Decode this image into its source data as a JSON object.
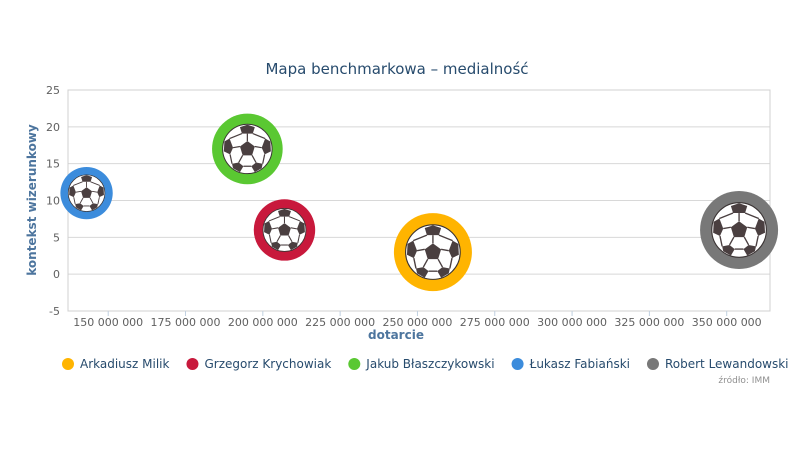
{
  "chart_data": {
    "type": "bubble",
    "title": "Mapa benchmarkowa – medialność",
    "xlabel": "dotarcie",
    "ylabel": "kontekst wizerunkowy",
    "xlim": [
      137000000,
      364000000
    ],
    "ylim": [
      -5,
      25
    ],
    "xticks": [
      150000000,
      175000000,
      200000000,
      225000000,
      250000000,
      275000000,
      300000000,
      325000000,
      350000000
    ],
    "xtick_labels": [
      "150 000 000",
      "175 000 000",
      "200 000 000",
      "225 000 000",
      "250 000 000",
      "275 000 000",
      "300 000 000",
      "325 000 000",
      "350 000 000"
    ],
    "yticks": [
      -5,
      0,
      5,
      10,
      15,
      20,
      25
    ],
    "ytick_labels": [
      "-5",
      "0",
      "5",
      "10",
      "15",
      "20",
      "25"
    ],
    "grid": true,
    "legend_position": "bottom",
    "series": [
      {
        "name": "Arkadiusz Milik",
        "color": "#ffb400",
        "x": 255000000,
        "y": 3,
        "size": 1.0
      },
      {
        "name": "Grzegorz Krychowiak",
        "color": "#c8193c",
        "x": 207000000,
        "y": 6,
        "size": 0.62
      },
      {
        "name": "Jakub Błaszczykowski",
        "color": "#5ac832",
        "x": 195000000,
        "y": 17,
        "size": 0.82
      },
      {
        "name": "Łukasz Fabiański",
        "color": "#3c8cdc",
        "x": 143000000,
        "y": 11,
        "size": 0.45
      },
      {
        "name": "Robert Lewandowski",
        "color": "#787878",
        "x": 354000000,
        "y": 6,
        "size": 1.0
      }
    ],
    "credits": "źródło: IMM"
  }
}
